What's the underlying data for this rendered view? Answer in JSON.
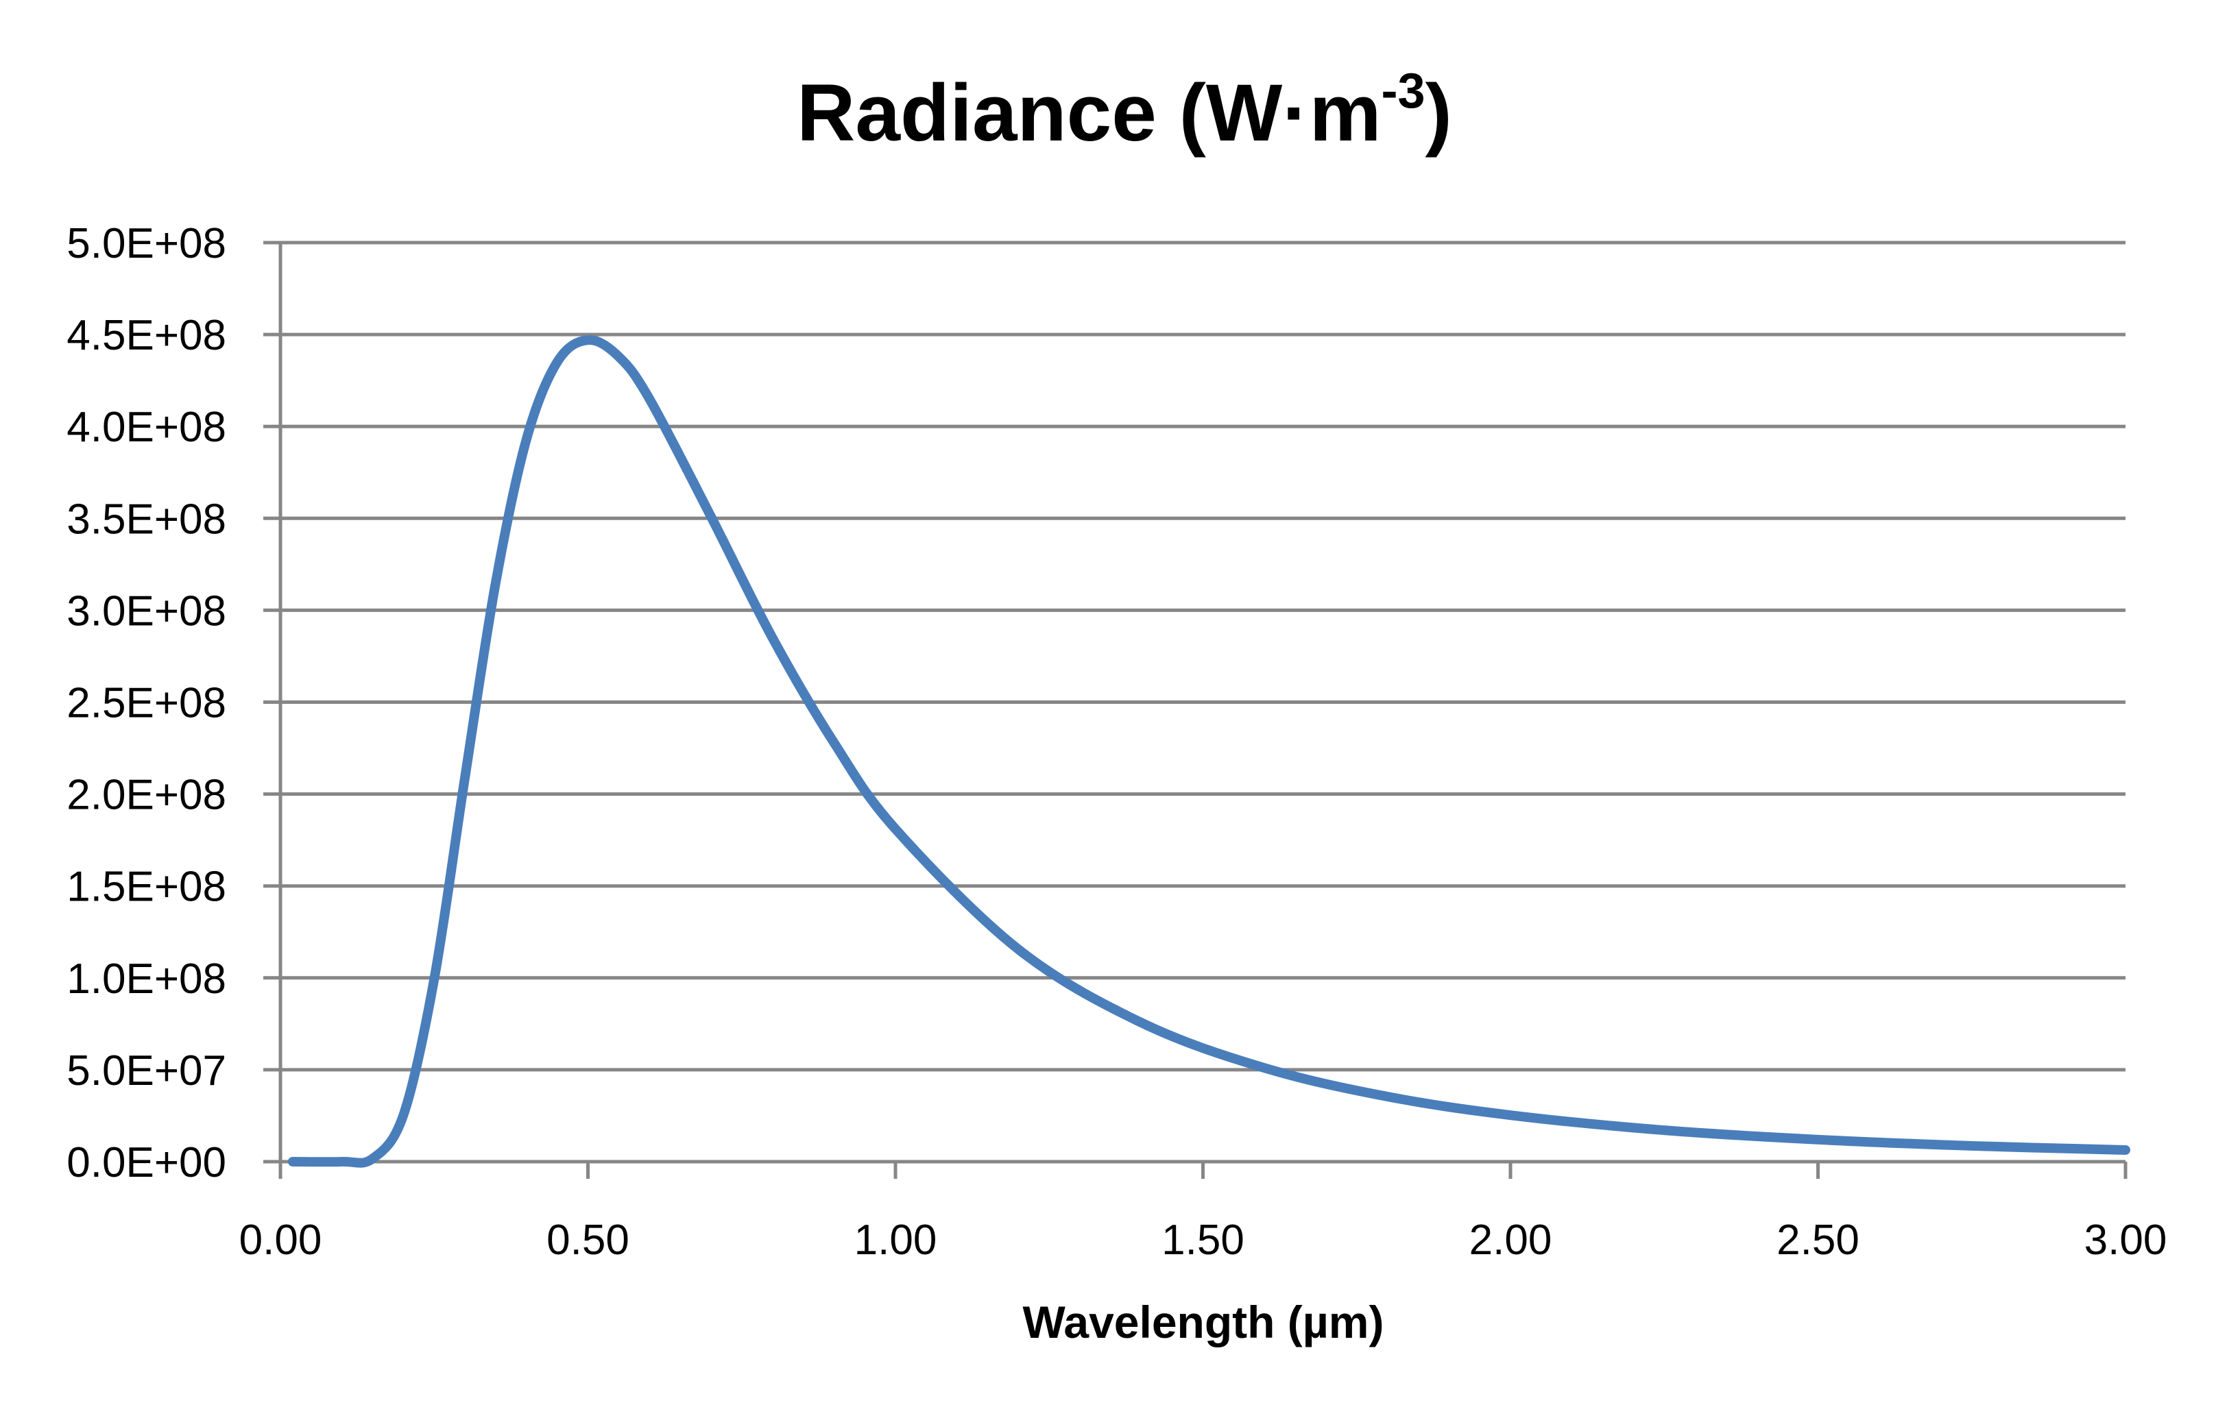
{
  "chart_data": {
    "type": "line",
    "title": "Radiance (W·m",
    "title_superscript": "-3",
    "title_close": ")",
    "xlabel": "Wavelength (µm)",
    "ylabel": "",
    "xlim": [
      0,
      3
    ],
    "ylim": [
      0,
      500000000
    ],
    "grid": true,
    "legend": "none",
    "x_ticks": [
      0,
      0.5,
      1,
      1.5,
      2,
      2.5,
      3
    ],
    "x_tick_labels": [
      "0.00",
      "0.50",
      "1.00",
      "1.50",
      "2.00",
      "2.50",
      "3.00"
    ],
    "y_ticks": [
      0,
      50000000,
      100000000,
      150000000,
      200000000,
      250000000,
      300000000,
      350000000,
      400000000,
      450000000,
      500000000
    ],
    "y_tick_labels": [
      "0.0E+00",
      "5.0E+07",
      "1.0E+08",
      "1.5E+08",
      "2.0E+08",
      "2.5E+08",
      "3.0E+08",
      "3.5E+08",
      "4.0E+08",
      "4.5E+08",
      "5.0E+08"
    ],
    "series": [
      {
        "name": "Radiance",
        "color": "#4a7ebb",
        "x": [
          0.02,
          0.1,
          0.15,
          0.2,
          0.25,
          0.3,
          0.35,
          0.4,
          0.45,
          0.5,
          0.55,
          0.6,
          0.7,
          0.8,
          0.9,
          1.0,
          1.2,
          1.4,
          1.6,
          1.8,
          2.0,
          2.25,
          2.5,
          2.75,
          3.0
        ],
        "y": [
          0,
          3400,
          1700000,
          25400000,
          99300000,
          209000000,
          315000000,
          393000000,
          435000000,
          447000000,
          438000000,
          415000000,
          351000000,
          285000000,
          228000000,
          181000000,
          115500000,
          75600000,
          51000000,
          35400000,
          25300000,
          17100000,
          12000000,
          8600000,
          6350000
        ]
      }
    ]
  }
}
